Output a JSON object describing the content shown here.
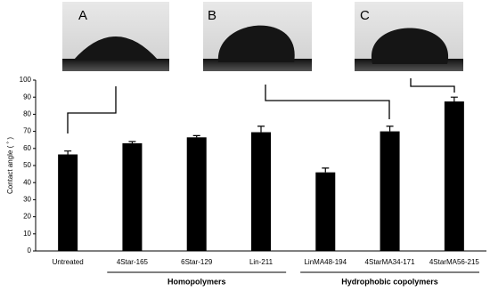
{
  "chart_data": {
    "type": "bar",
    "y_label": "Contact angle ( ˚ )",
    "categories": [
      "Untreated",
      "4Star-165",
      "6Star-129",
      "Lin-211",
      "LinMA48-194",
      "4StarMA34-171",
      "4StarMA56-215"
    ],
    "values": [
      56.5,
      63,
      66.5,
      69.5,
      46,
      70,
      87.5
    ],
    "errors": [
      2,
      1,
      1,
      3.5,
      2.5,
      3,
      2.5
    ],
    "color": "#000000",
    "ylim": [
      0,
      100
    ],
    "yticks": [
      0,
      10,
      20,
      30,
      40,
      50,
      60,
      70,
      80,
      90,
      100
    ],
    "groups": [
      {
        "label": "Homopolymers",
        "from": 1,
        "to": 3
      },
      {
        "label": "Hydrophobic copolymers",
        "from": 4,
        "to": 6
      }
    ],
    "image_labels": [
      "A",
      "B",
      "C"
    ]
  }
}
